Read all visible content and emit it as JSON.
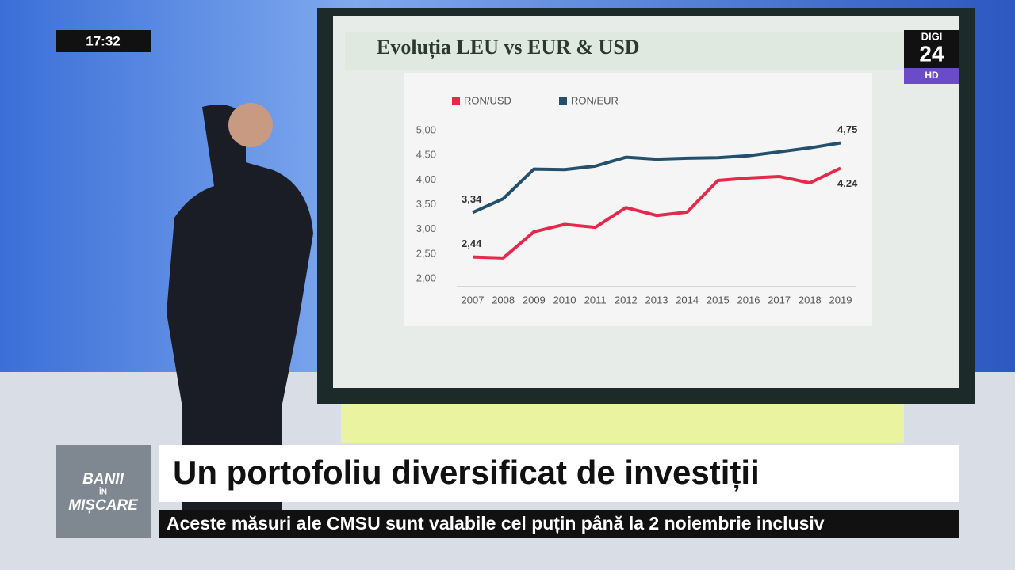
{
  "chart_data": {
    "type": "line",
    "title": "Evoluția LEU vs EUR & USD",
    "categories": [
      "2007",
      "2008",
      "2009",
      "2010",
      "2011",
      "2012",
      "2013",
      "2014",
      "2015",
      "2016",
      "2017",
      "2018",
      "2019"
    ],
    "series": [
      {
        "name": "RON/USD",
        "color": "#e5294b",
        "values": [
          2.44,
          2.42,
          2.95,
          3.1,
          3.04,
          3.44,
          3.28,
          3.35,
          3.99,
          4.04,
          4.07,
          3.94,
          4.24
        ],
        "value_labels": [
          "2,44",
          null,
          null,
          null,
          null,
          null,
          null,
          null,
          null,
          null,
          null,
          null,
          "4,24"
        ]
      },
      {
        "name": "RON/EUR",
        "color": "#24506d",
        "values": [
          3.34,
          3.62,
          4.22,
          4.21,
          4.28,
          4.46,
          4.42,
          4.44,
          4.45,
          4.49,
          4.57,
          4.65,
          4.75
        ],
        "value_labels": [
          "3,34",
          null,
          null,
          null,
          null,
          null,
          null,
          null,
          null,
          null,
          null,
          null,
          "4,75"
        ]
      }
    ],
    "ylim": [
      2,
      5
    ],
    "yticks": [
      {
        "value": 2,
        "label": "2,00"
      },
      {
        "value": 2.5,
        "label": "2,50"
      },
      {
        "value": 3,
        "label": "3,00"
      },
      {
        "value": 3.5,
        "label": "3,50"
      },
      {
        "value": 4,
        "label": "4,00"
      },
      {
        "value": 4.5,
        "label": "4,50"
      },
      {
        "value": 5,
        "label": "5,00"
      }
    ],
    "legend": "top-left",
    "grid": false
  },
  "overlay": {
    "clock": "17:32",
    "channel_logo": {
      "name": "DIGI",
      "number": "24",
      "badge": "HD"
    },
    "show_logo": [
      "BANII",
      "ÎN",
      "MIȘCARE"
    ],
    "headline": "Un portofoliu diversificat de investiții",
    "ticker": "Aceste măsuri ale CMSU sunt valabile cel puțin până la 2 noiembrie inclusiv"
  }
}
